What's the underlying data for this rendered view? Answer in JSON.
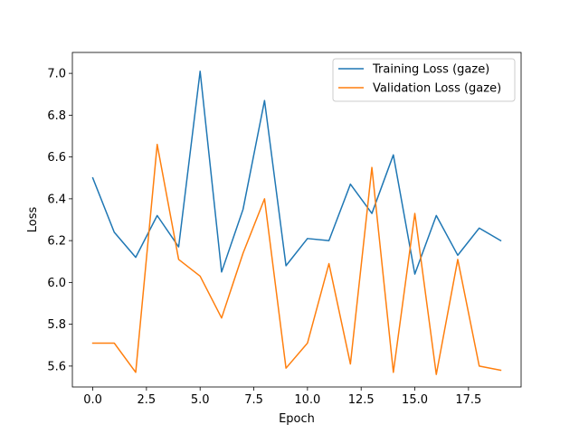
{
  "chart_data": {
    "type": "line",
    "title": "",
    "xlabel": "Epoch",
    "ylabel": "Loss",
    "xlim": [
      -0.95,
      19.95
    ],
    "ylim": [
      5.5,
      7.1
    ],
    "xticks": [
      0,
      2.5,
      5,
      7.5,
      10,
      12.5,
      15,
      17.5
    ],
    "xtick_labels": [
      "0.0",
      "2.5",
      "5.0",
      "7.5",
      "10.0",
      "12.5",
      "15.0",
      "17.5"
    ],
    "yticks": [
      5.6,
      5.8,
      6.0,
      6.2,
      6.4,
      6.6,
      6.8,
      7.0
    ],
    "ytick_labels": [
      "5.6",
      "5.8",
      "6.0",
      "6.2",
      "6.4",
      "6.6",
      "6.8",
      "7.0"
    ],
    "grid": false,
    "legend_position": "top-right",
    "x": [
      0,
      1,
      2,
      3,
      4,
      5,
      6,
      7,
      8,
      9,
      10,
      11,
      12,
      13,
      14,
      15,
      16,
      17,
      18,
      19
    ],
    "series": [
      {
        "name": "Training Loss (gaze)",
        "color": "#1f77b4",
        "values": [
          6.5,
          6.24,
          6.12,
          6.32,
          6.17,
          7.01,
          6.05,
          6.35,
          6.87,
          6.08,
          6.21,
          6.2,
          6.47,
          6.33,
          6.61,
          6.04,
          6.32,
          6.13,
          6.26,
          6.2
        ]
      },
      {
        "name": "Validation Loss (gaze)",
        "color": "#ff7f0e",
        "values": [
          5.71,
          5.71,
          5.57,
          6.66,
          6.11,
          6.03,
          5.83,
          6.14,
          6.4,
          5.59,
          5.71,
          6.09,
          5.61,
          6.55,
          5.57,
          6.33,
          5.56,
          6.11,
          5.6,
          5.58
        ]
      }
    ]
  }
}
